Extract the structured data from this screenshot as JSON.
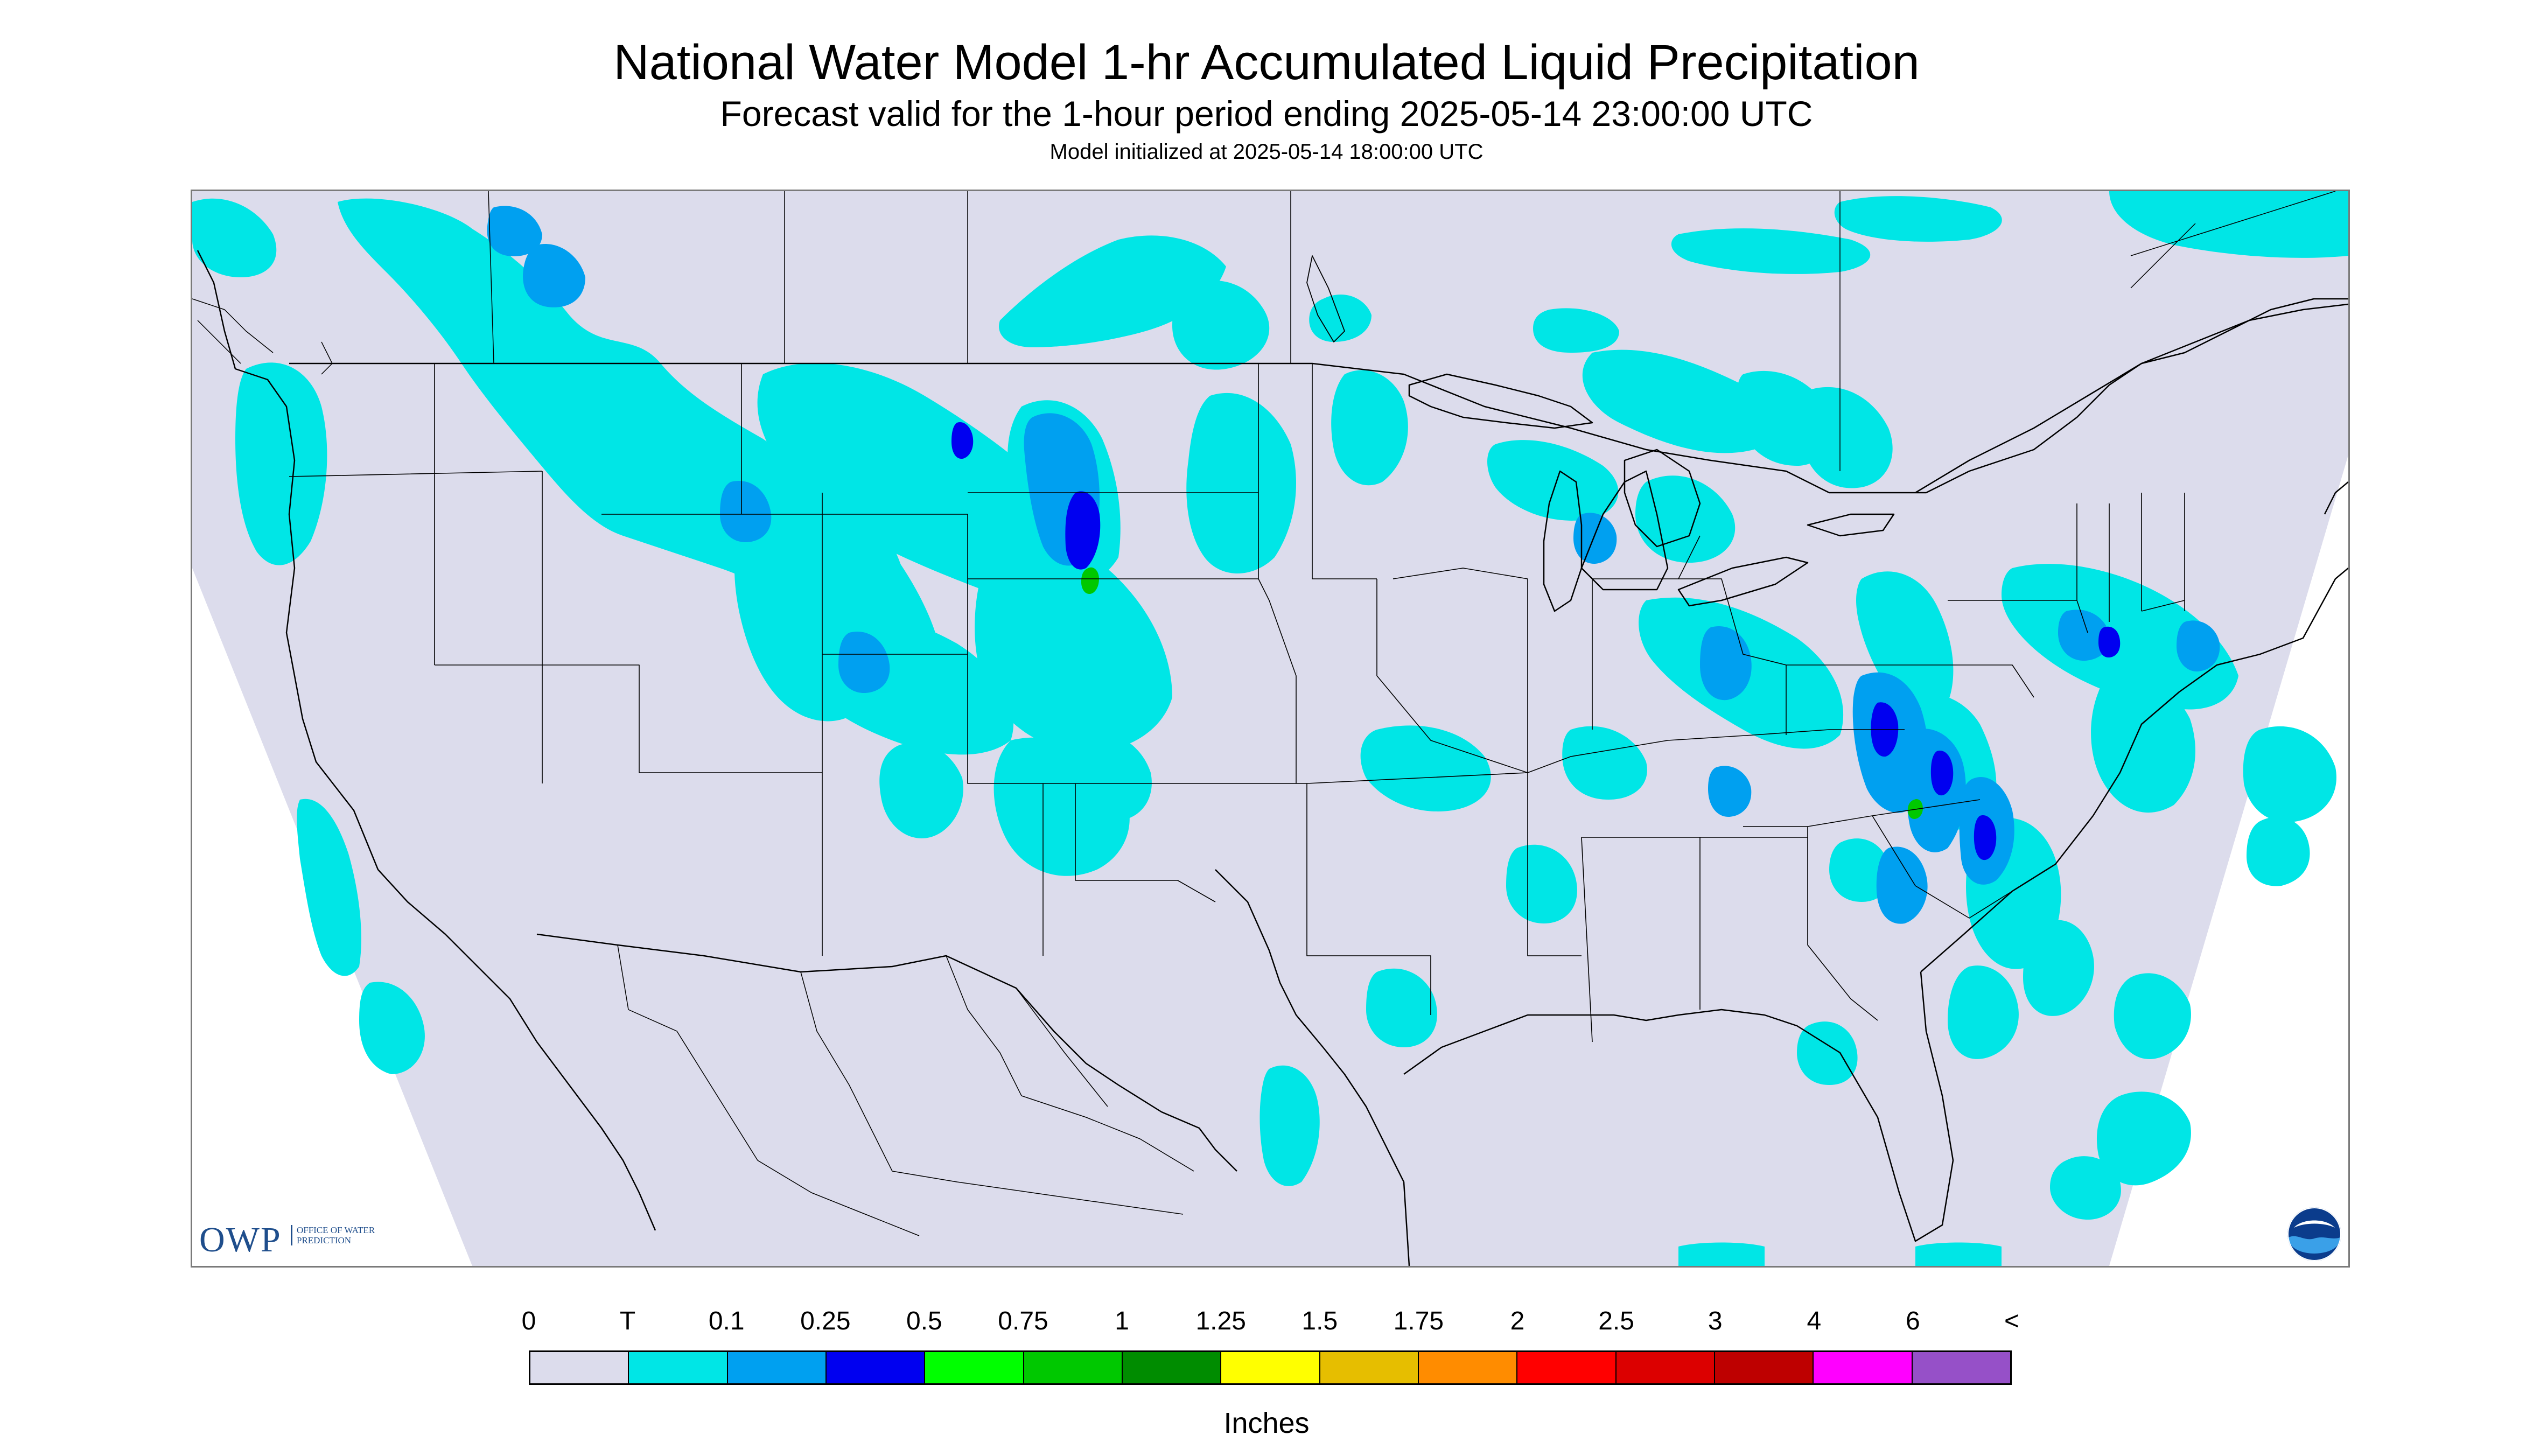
{
  "header": {
    "title": "National Water Model 1-hr Accumulated Liquid Precipitation",
    "subtitle": "Forecast valid for the 1-hour period ending 2025-05-14 23:00:00 UTC",
    "init": "Model initialized at 2025-05-14 18:00:00 UTC"
  },
  "logos": {
    "owp_abbrev": "OWP",
    "owp_name": "OFFICE OF WATER PREDICTION",
    "noaa_label": "NOAA"
  },
  "legend": {
    "units": "Inches",
    "ticks": [
      "0",
      "T",
      "0.1",
      "0.25",
      "0.5",
      "0.75",
      "1",
      "1.25",
      "1.5",
      "1.75",
      "2",
      "2.5",
      "3",
      "4",
      "6",
      "<"
    ],
    "colors": [
      "#dcdcec",
      "#00e6e6",
      "#00a0f0",
      "#0000f0",
      "#00ff00",
      "#00c800",
      "#008c00",
      "#ffff00",
      "#e6be00",
      "#ff8c00",
      "#ff0000",
      "#dc0000",
      "#be0000",
      "#ff00ff",
      "#9650c8"
    ]
  },
  "map": {
    "domain_color": "#dcdcec",
    "boundary_color": "#000000",
    "precip_colors": {
      "trace": "#00e6e6",
      "light": "#00a0f0",
      "moderate": "#0000f0",
      "heavy": "#00c800"
    }
  }
}
